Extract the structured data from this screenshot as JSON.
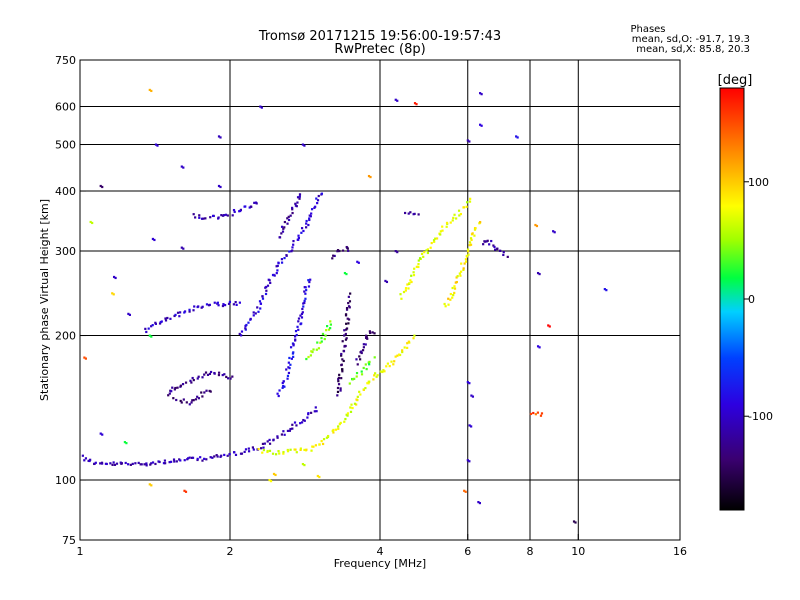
{
  "chart_data": {
    "type": "scatter",
    "title": "Tromsø 20171215 19:56:00-19:57:43",
    "subtitle": "RwPretec (8p)",
    "xlabel": "Frequency [MHz]",
    "ylabel": "Stationary phase Virtual Height [km]",
    "x_scale": "log",
    "y_scale": "log",
    "xlim": [
      1,
      16
    ],
    "ylim": [
      75,
      750
    ],
    "x_ticks": [
      1,
      2,
      4,
      6,
      8,
      10,
      16
    ],
    "x_tick_labels": [
      "1",
      "2",
      "4",
      "6",
      "8",
      "10",
      "16"
    ],
    "y_ticks": [
      75,
      100,
      200,
      300,
      400,
      500,
      600,
      750
    ],
    "y_tick_labels": [
      "75",
      "100",
      "200",
      "300",
      "400",
      "500",
      "600",
      "750"
    ],
    "grid": true,
    "stats": {
      "heading": "Phases",
      "line_o": "mean, sd,O: -91.7, 19.3",
      "line_x": "mean, sd,X: 85.8, 20.3"
    },
    "colorbar": {
      "label": "[deg]",
      "range": [
        -180,
        180
      ],
      "ticks": [
        -100,
        0,
        100
      ],
      "tick_labels": [
        "-100",
        "0",
        "100"
      ]
    },
    "traces": [
      {
        "pts": [
          [
            1.01,
            112
          ],
          [
            1.05,
            109
          ],
          [
            1.1,
            108
          ],
          [
            1.2,
            108
          ],
          [
            1.3,
            108
          ],
          [
            1.45,
            109
          ],
          [
            1.6,
            110
          ],
          [
            1.8,
            111
          ],
          [
            2.0,
            113
          ],
          [
            2.15,
            115
          ],
          [
            2.3,
            117
          ],
          [
            2.4,
            120
          ],
          [
            2.55,
            125
          ],
          [
            2.7,
            130
          ],
          [
            2.85,
            135
          ],
          [
            3.0,
            142
          ]
        ],
        "phase": -110
      },
      {
        "pts": [
          [
            2.3,
            115
          ],
          [
            2.5,
            114
          ],
          [
            2.7,
            115
          ],
          [
            2.9,
            116
          ],
          [
            3.05,
            120
          ],
          [
            3.2,
            125
          ],
          [
            3.35,
            132
          ],
          [
            3.5,
            140
          ],
          [
            3.6,
            148
          ],
          [
            3.75,
            158
          ],
          [
            3.9,
            165
          ],
          [
            4.1,
            170
          ],
          [
            4.3,
            180
          ],
          [
            4.5,
            190
          ],
          [
            4.7,
            200
          ]
        ],
        "phase": 75
      },
      {
        "pts": [
          [
            2.5,
            150
          ],
          [
            2.6,
            165
          ],
          [
            2.65,
            180
          ],
          [
            2.7,
            195
          ],
          [
            2.75,
            210
          ],
          [
            2.8,
            230
          ],
          [
            2.85,
            250
          ],
          [
            2.9,
            265
          ]
        ],
        "phase": -85
      },
      {
        "pts": [
          [
            2.1,
            200
          ],
          [
            2.2,
            215
          ],
          [
            2.3,
            232
          ],
          [
            2.35,
            245
          ],
          [
            2.4,
            258
          ],
          [
            2.45,
            270
          ],
          [
            2.5,
            282
          ],
          [
            2.6,
            295
          ],
          [
            2.7,
            312
          ],
          [
            2.8,
            330
          ],
          [
            2.9,
            355
          ],
          [
            3.0,
            385
          ],
          [
            3.05,
            400
          ]
        ],
        "phase": -95
      },
      {
        "pts": [
          [
            2.5,
            320
          ],
          [
            2.6,
            345
          ],
          [
            2.7,
            375
          ],
          [
            2.8,
            398
          ]
        ],
        "phase": -115
      },
      {
        "pts": [
          [
            1.35,
            205
          ],
          [
            1.45,
            215
          ],
          [
            1.6,
            222
          ],
          [
            1.7,
            228
          ],
          [
            1.85,
            232
          ],
          [
            2.0,
            233
          ],
          [
            2.1,
            234
          ]
        ],
        "phase": -100
      },
      {
        "pts": [
          [
            1.7,
            355
          ],
          [
            1.8,
            352
          ],
          [
            1.9,
            352
          ],
          [
            2.05,
            362
          ],
          [
            2.15,
            370
          ],
          [
            2.3,
            380
          ]
        ],
        "phase": -105
      },
      {
        "pts": [
          [
            1.5,
            150
          ],
          [
            1.55,
            156
          ],
          [
            1.65,
            160
          ],
          [
            1.75,
            165
          ],
          [
            1.85,
            168
          ],
          [
            1.95,
            166
          ],
          [
            2.05,
            162
          ]
        ],
        "phase": -125
      },
      {
        "pts": [
          [
            1.55,
            148
          ],
          [
            1.65,
            145
          ],
          [
            1.75,
            150
          ],
          [
            1.85,
            155
          ]
        ],
        "phase": -135
      },
      {
        "pts": [
          [
            3.2,
            290
          ],
          [
            3.3,
            300
          ],
          [
            3.4,
            305
          ],
          [
            3.5,
            298
          ]
        ],
        "phase": -135
      },
      {
        "pts": [
          [
            3.3,
            150
          ],
          [
            3.35,
            175
          ],
          [
            3.4,
            200
          ],
          [
            3.45,
            225
          ],
          [
            3.5,
            245
          ]
        ],
        "phase": -140
      },
      {
        "pts": [
          [
            3.6,
            175
          ],
          [
            3.7,
            190
          ],
          [
            3.8,
            205
          ],
          [
            3.9,
            200
          ]
        ],
        "phase": -130
      },
      {
        "pts": [
          [
            4.4,
            240
          ],
          [
            4.6,
            258
          ],
          [
            4.8,
            285
          ],
          [
            5.0,
            305
          ],
          [
            5.3,
            330
          ],
          [
            5.6,
            350
          ],
          [
            5.9,
            370
          ],
          [
            6.1,
            385
          ]
        ],
        "phase": 70
      },
      {
        "pts": [
          [
            4.5,
            360
          ],
          [
            4.65,
            358
          ],
          [
            4.8,
            360
          ]
        ],
        "phase": -110
      },
      {
        "pts": [
          [
            5.4,
            230
          ],
          [
            5.6,
            245
          ],
          [
            5.8,
            270
          ],
          [
            6.0,
            300
          ],
          [
            6.2,
            330
          ],
          [
            6.4,
            350
          ]
        ],
        "phase": 85
      },
      {
        "pts": [
          [
            6.4,
            310
          ],
          [
            6.6,
            318
          ],
          [
            6.8,
            305
          ],
          [
            7.0,
            298
          ],
          [
            7.2,
            290
          ]
        ],
        "phase": -115
      },
      {
        "pts": [
          [
            8.1,
            137
          ],
          [
            8.3,
            138
          ],
          [
            8.5,
            136
          ]
        ],
        "phase": 150
      },
      {
        "pts": [
          [
            2.85,
            180
          ],
          [
            3.0,
            190
          ],
          [
            3.1,
            200
          ],
          [
            3.2,
            215
          ]
        ],
        "phase": 40
      },
      {
        "pts": [
          [
            3.5,
            160
          ],
          [
            3.7,
            170
          ],
          [
            3.9,
            180
          ]
        ],
        "phase": 30
      }
    ],
    "scatter": [
      [
        1.38,
        650,
        110
      ],
      [
        1.42,
        500,
        -95
      ],
      [
        1.6,
        450,
        -100
      ],
      [
        1.9,
        520,
        -105
      ],
      [
        1.1,
        410,
        -140
      ],
      [
        1.05,
        345,
        60
      ],
      [
        1.4,
        318,
        -95
      ],
      [
        1.6,
        305,
        -110
      ],
      [
        1.9,
        410,
        -100
      ],
      [
        1.17,
        265,
        -100
      ],
      [
        1.16,
        245,
        95
      ],
      [
        1.25,
        222,
        -100
      ],
      [
        1.38,
        200,
        20
      ],
      [
        1.02,
        180,
        150
      ],
      [
        1.1,
        125,
        -95
      ],
      [
        1.23,
        120,
        20
      ],
      [
        1.38,
        98,
        100
      ],
      [
        1.62,
        95,
        160
      ],
      [
        2.3,
        600,
        -100
      ],
      [
        2.8,
        500,
        -100
      ],
      [
        3.8,
        430,
        120
      ],
      [
        4.3,
        620,
        -100
      ],
      [
        4.7,
        610,
        170
      ],
      [
        6.0,
        510,
        -110
      ],
      [
        6.35,
        640,
        -100
      ],
      [
        6.35,
        550,
        -90
      ],
      [
        7.5,
        520,
        -80
      ],
      [
        8.2,
        340,
        120
      ],
      [
        8.9,
        330,
        -100
      ],
      [
        8.3,
        270,
        -110
      ],
      [
        8.7,
        210,
        180
      ],
      [
        8.3,
        190,
        -90
      ],
      [
        11.3,
        250,
        -80
      ],
      [
        9.8,
        82,
        -150
      ],
      [
        6.3,
        90,
        -100
      ],
      [
        5.9,
        95,
        140
      ],
      [
        6.0,
        110,
        -100
      ],
      [
        6.05,
        130,
        -95
      ],
      [
        6.1,
        150,
        -100
      ],
      [
        6.0,
        160,
        -90
      ],
      [
        4.1,
        260,
        -110
      ],
      [
        4.3,
        300,
        -120
      ],
      [
        3.0,
        102,
        90
      ],
      [
        2.45,
        103,
        100
      ],
      [
        2.4,
        100,
        80
      ],
      [
        2.8,
        108,
        60
      ],
      [
        3.4,
        270,
        20
      ],
      [
        3.6,
        285,
        -90
      ]
    ]
  }
}
